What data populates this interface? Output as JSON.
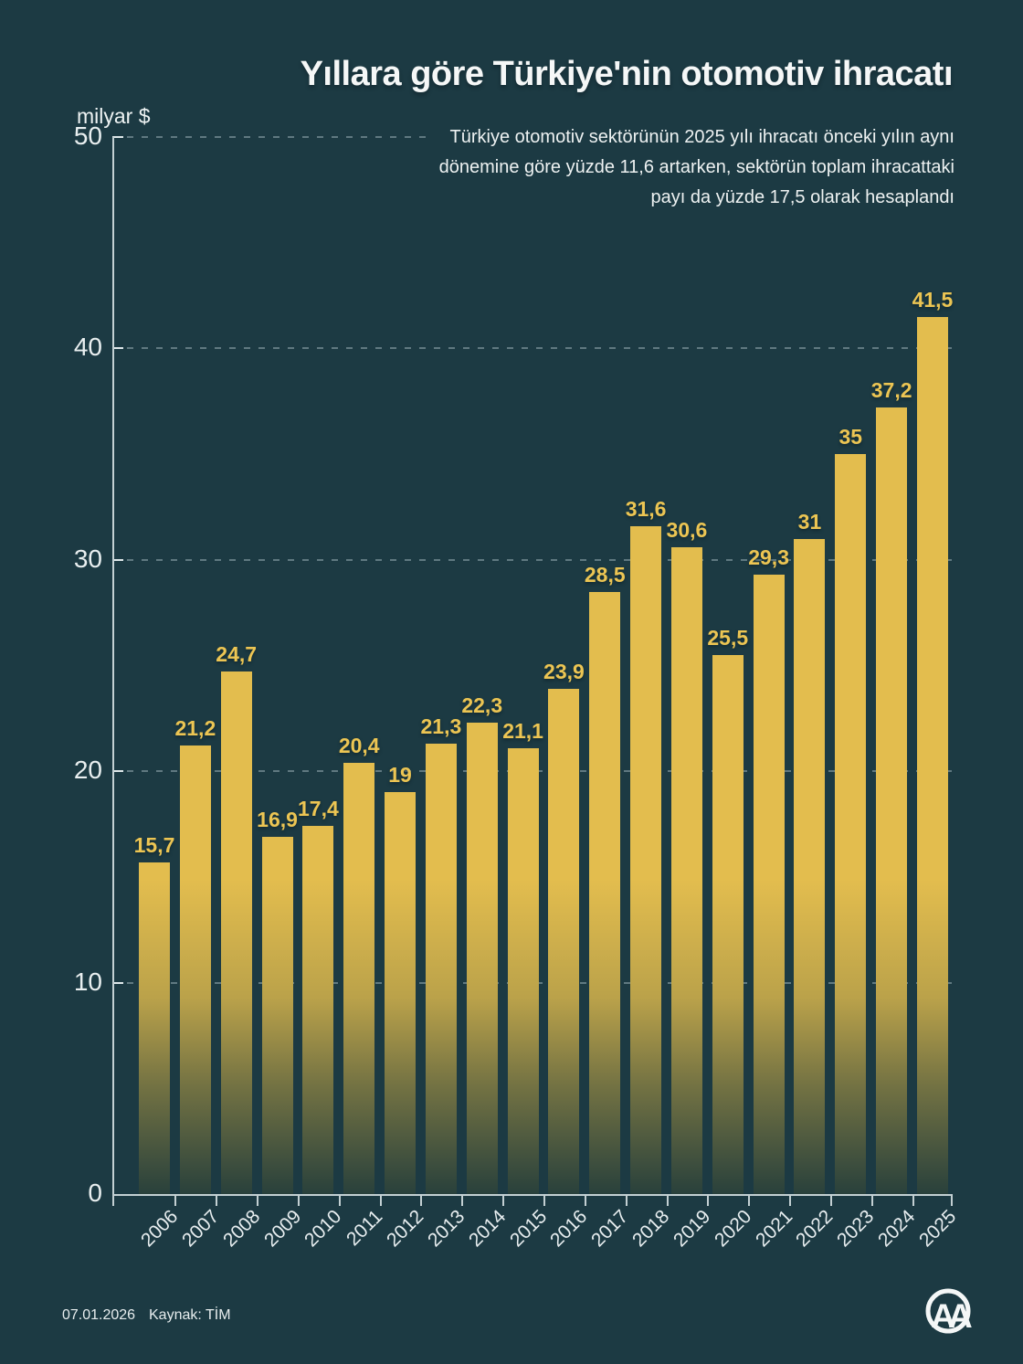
{
  "title": "Yıllara göre Türkiye'nin otomotiv ihracatı",
  "subtitle": {
    "lines": [
      "Türkiye otomotiv sektörünün 2025 yılı ihracatı önceki yılın aynı",
      "dönemine göre yüzde 11,6 artarken, sektörün toplam ihracattaki",
      "payı da yüzde 17,5 olarak hesaplandı"
    ]
  },
  "y_axis_unit": "milyar $",
  "chart_data": {
    "type": "bar",
    "title": "Yıllara göre Türkiye'nin otomotiv ihracatı",
    "xlabel": "",
    "ylabel": "milyar $",
    "ylim": [
      0,
      50
    ],
    "y_ticks": [
      0,
      10,
      20,
      30,
      40,
      50
    ],
    "grid": "dashed horizontal gridlines",
    "legend": "none",
    "categories": [
      "2006",
      "2007",
      "2008",
      "2009",
      "2010",
      "2011",
      "2012",
      "2013",
      "2014",
      "2015",
      "2016",
      "2017",
      "2018",
      "2019",
      "2020",
      "2021",
      "2022",
      "2023",
      "2024",
      "2025"
    ],
    "values": [
      15.7,
      21.2,
      24.7,
      16.9,
      17.4,
      20.4,
      19,
      21.3,
      22.3,
      21.1,
      23.9,
      28.5,
      31.6,
      30.6,
      25.5,
      29.3,
      31,
      35,
      37.2,
      41.5
    ],
    "value_labels": [
      "15,7",
      "21,2",
      "24,7",
      "16,9",
      "17,4",
      "20,4",
      "19",
      "21,3",
      "22,3",
      "21,1",
      "23,9",
      "28,5",
      "31,6",
      "30,6",
      "25,5",
      "29,3",
      "31",
      "35",
      "37,2",
      "41,5"
    ],
    "bar_color": "#e3bd4e",
    "value_label_color": "#ecc553",
    "background_color": "#1c3a43"
  },
  "footer": {
    "date": "07.01.2026",
    "source": "Kaynak: TİM",
    "agency_logo": "AA"
  }
}
